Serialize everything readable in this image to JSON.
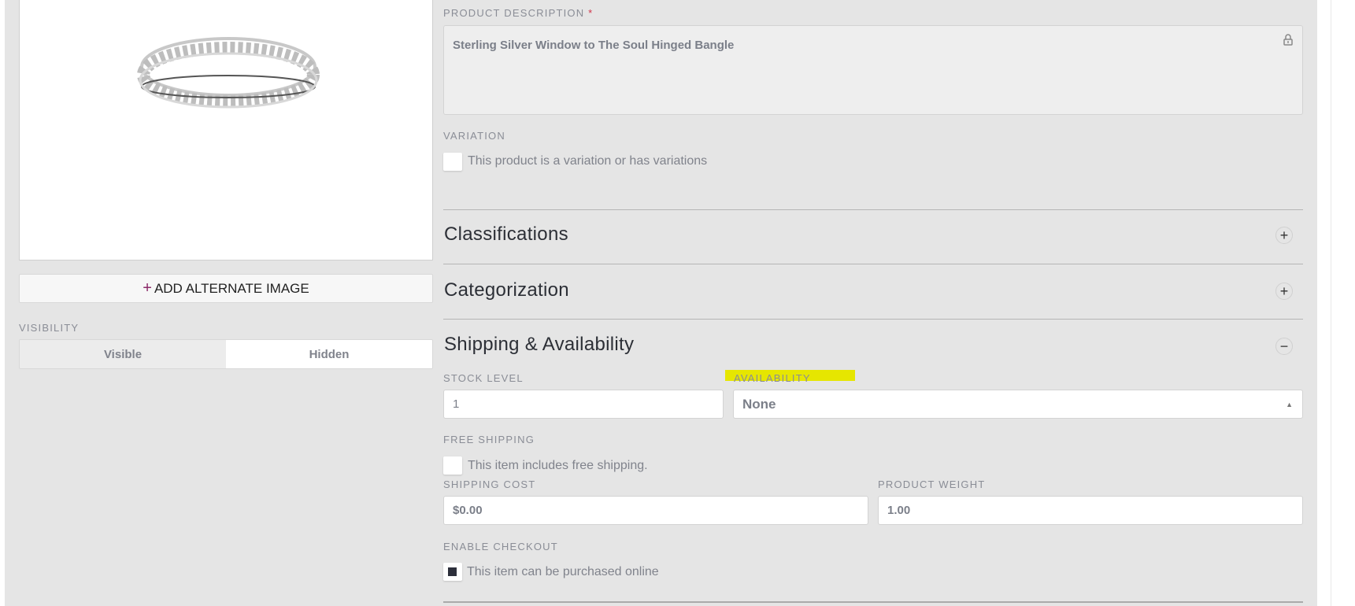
{
  "left": {
    "add_image_label": "ADD ALTERNATE IMAGE",
    "visibility_label": "VISIBILITY",
    "visibility_options": [
      "Visible",
      "Hidden"
    ],
    "visibility_selected": "Visible"
  },
  "description": {
    "label": "PRODUCT DESCRIPTION",
    "required_mark": "*",
    "value": "Sterling Silver Window to The Soul Hinged Bangle",
    "locked": true
  },
  "variation": {
    "label": "VARIATION",
    "checkbox_label": "This product is a variation or has variations",
    "checked": false
  },
  "sections": [
    {
      "title": "Classifications",
      "state": "collapsed"
    },
    {
      "title": "Categorization",
      "state": "collapsed"
    },
    {
      "title": "Shipping & Availability",
      "state": "expanded"
    }
  ],
  "shipping": {
    "stock_label": "STOCK LEVEL",
    "stock_value": "1",
    "availability_label": "AVAILABILITY",
    "availability_value": "None",
    "highlight_color": "#e6e600",
    "free_shipping_label": "FREE SHIPPING",
    "free_shipping_checkbox": "This item includes free shipping.",
    "free_shipping_checked": false,
    "shipping_cost_label": "SHIPPING COST",
    "shipping_cost_value": "$0.00",
    "weight_label": "PRODUCT WEIGHT",
    "weight_value": "1.00",
    "checkout_label": "ENABLE CHECKOUT",
    "checkout_checkbox": "This item can be purchased online",
    "checkout_checked": true
  }
}
